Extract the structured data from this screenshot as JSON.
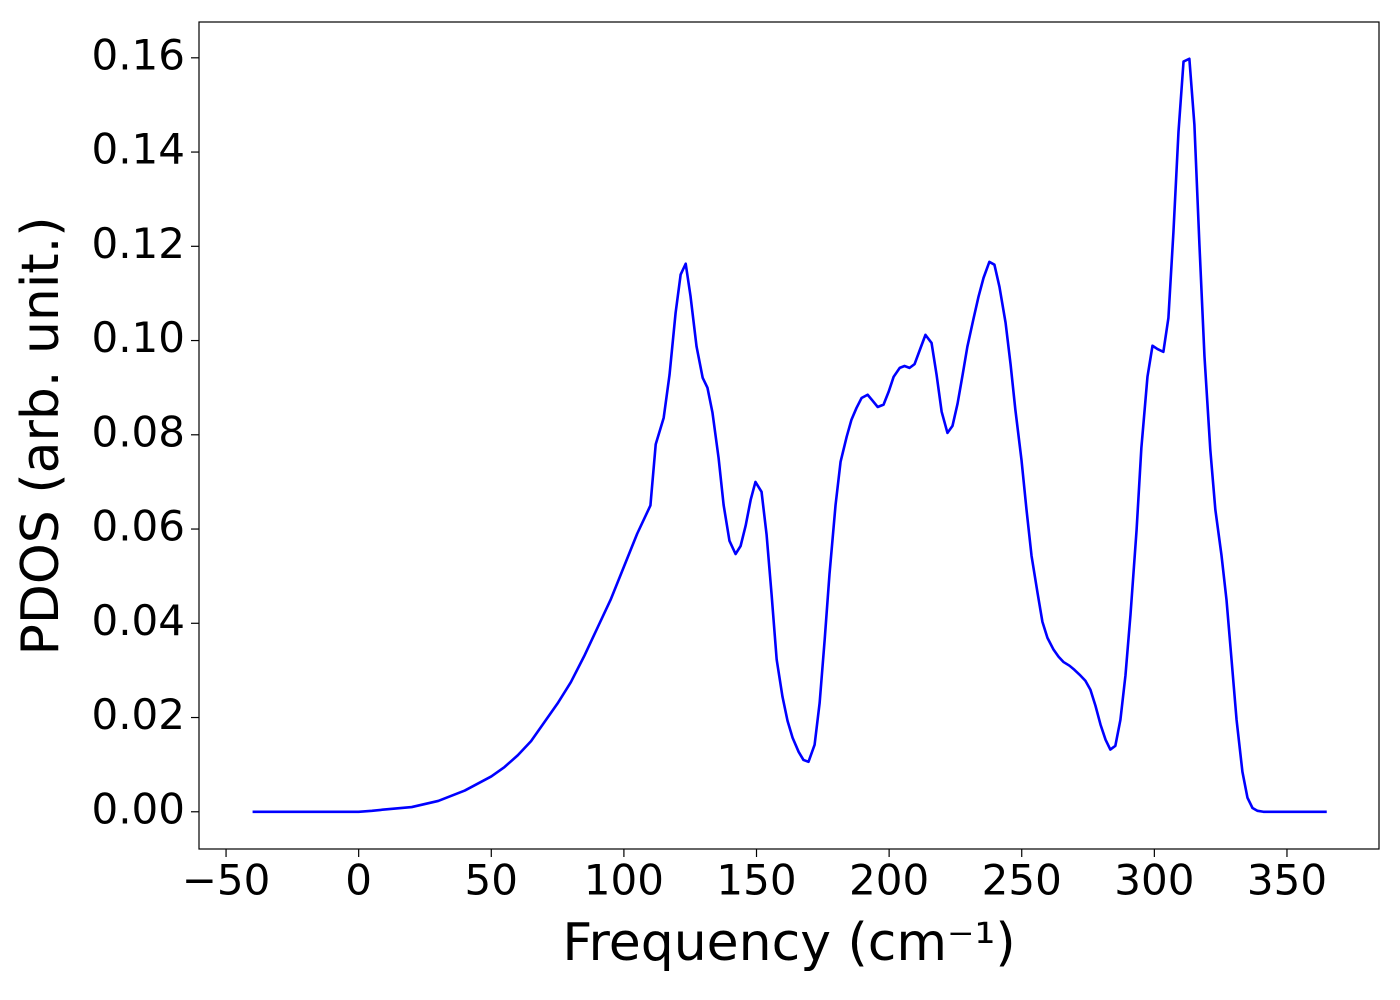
{
  "chart_data": {
    "type": "line",
    "xlabel": "Frequency (cm⁻¹)",
    "ylabel": "PDOS (arb. unit.)",
    "xlim": [
      -60.2,
      384.7
    ],
    "ylim": [
      -0.0079,
      0.1676
    ],
    "xticks": [
      {
        "value": -50,
        "label": "−50"
      },
      0,
      50,
      100,
      150,
      200,
      250,
      300,
      350
    ],
    "yticks": [
      {
        "value": 0,
        "label": "0.00"
      },
      {
        "value": 0.02,
        "label": "0.02"
      },
      {
        "value": 0.04,
        "label": "0.04"
      },
      {
        "value": 0.06,
        "label": "0.06"
      },
      {
        "value": 0.08,
        "label": "0.08"
      },
      {
        "value": 0.1,
        "label": "0.10"
      },
      {
        "value": 0.12,
        "label": "0.12"
      },
      {
        "value": 0.14,
        "label": "0.14"
      },
      {
        "value": 0.16,
        "label": "0.16"
      }
    ],
    "grid": false,
    "x": [
      -40,
      -20,
      0,
      5,
      10,
      20,
      30,
      40,
      50,
      55,
      60,
      65,
      70,
      75,
      80,
      85,
      90,
      95,
      100,
      105,
      110,
      112,
      115,
      117.2,
      119.5,
      121.4,
      123.3,
      125.1,
      127.4,
      129.7,
      131.5,
      133.4,
      135.7,
      137.6,
      139.8,
      142.1,
      144,
      145.9,
      147.8,
      149.6,
      151.9,
      153.8,
      155.7,
      157.6,
      159.8,
      161.7,
      163.6,
      165.9,
      167.7,
      169.6,
      171.9,
      173.8,
      175.7,
      177.5,
      179.8,
      181.7,
      184,
      185.8,
      187.7,
      189.6,
      191.9,
      193.8,
      195.7,
      197.9,
      199.8,
      201.7,
      204,
      205.8,
      207.7,
      209.6,
      211.9,
      213.7,
      216,
      217.9,
      219.8,
      222,
      223.9,
      225.8,
      227.7,
      229.5,
      231.8,
      233.7,
      235.6,
      237.8,
      239.7,
      241.6,
      243.9,
      245.8,
      247.6,
      249.9,
      251.8,
      253.7,
      256,
      257.8,
      259.7,
      262,
      263.9,
      265.7,
      268,
      269.9,
      271.8,
      274,
      275.9,
      277.8,
      279.7,
      281.6,
      283.4,
      285.3,
      287.2,
      289.1,
      291,
      293.3,
      295.1,
      297.4,
      299.3,
      301.2,
      303.4,
      305.3,
      307.2,
      309.1,
      311,
      313.2,
      315.1,
      317,
      318.9,
      321.1,
      323,
      325.3,
      327.2,
      329.1,
      331,
      333.2,
      335.1,
      337,
      338.9,
      341.1,
      365
    ],
    "series": [
      {
        "name": "PDOS",
        "color": "#0000ff",
        "values": [
          0,
          0,
          0,
          0.0002,
          0.0005,
          0.001,
          0.0023,
          0.0045,
          0.0075,
          0.0095,
          0.012,
          0.015,
          0.019,
          0.023,
          0.0275,
          0.033,
          0.039,
          0.045,
          0.052,
          0.059,
          0.065,
          0.078,
          0.0836,
          0.0927,
          0.1059,
          0.114,
          0.1163,
          0.1095,
          0.0987,
          0.0921,
          0.09,
          0.0847,
          0.0751,
          0.0651,
          0.0575,
          0.0547,
          0.0564,
          0.0607,
          0.0662,
          0.07,
          0.0679,
          0.0588,
          0.046,
          0.0323,
          0.0244,
          0.0193,
          0.0157,
          0.0127,
          0.011,
          0.0106,
          0.0142,
          0.0231,
          0.0365,
          0.0503,
          0.0651,
          0.0743,
          0.0796,
          0.0832,
          0.0857,
          0.0878,
          0.0885,
          0.0872,
          0.0859,
          0.0864,
          0.0891,
          0.0923,
          0.0942,
          0.0946,
          0.0942,
          0.095,
          0.0985,
          0.1012,
          0.0995,
          0.0927,
          0.0849,
          0.0804,
          0.0819,
          0.0866,
          0.0927,
          0.0987,
          0.1046,
          0.1093,
          0.1133,
          0.1167,
          0.1161,
          0.1114,
          0.1038,
          0.0949,
          0.0853,
          0.0747,
          0.0641,
          0.0543,
          0.0463,
          0.0403,
          0.0369,
          0.0344,
          0.0329,
          0.0318,
          0.031,
          0.0301,
          0.0291,
          0.0278,
          0.0259,
          0.0225,
          0.0185,
          0.0153,
          0.0132,
          0.014,
          0.0195,
          0.0289,
          0.0418,
          0.0598,
          0.0772,
          0.0923,
          0.0989,
          0.0982,
          0.0976,
          0.1048,
          0.1231,
          0.1443,
          0.1592,
          0.1598,
          0.1458,
          0.1203,
          0.0966,
          0.0768,
          0.0641,
          0.0545,
          0.045,
          0.0323,
          0.0195,
          0.0085,
          0.003,
          0.0008,
          0.0002,
          0,
          0
        ]
      }
    ]
  }
}
